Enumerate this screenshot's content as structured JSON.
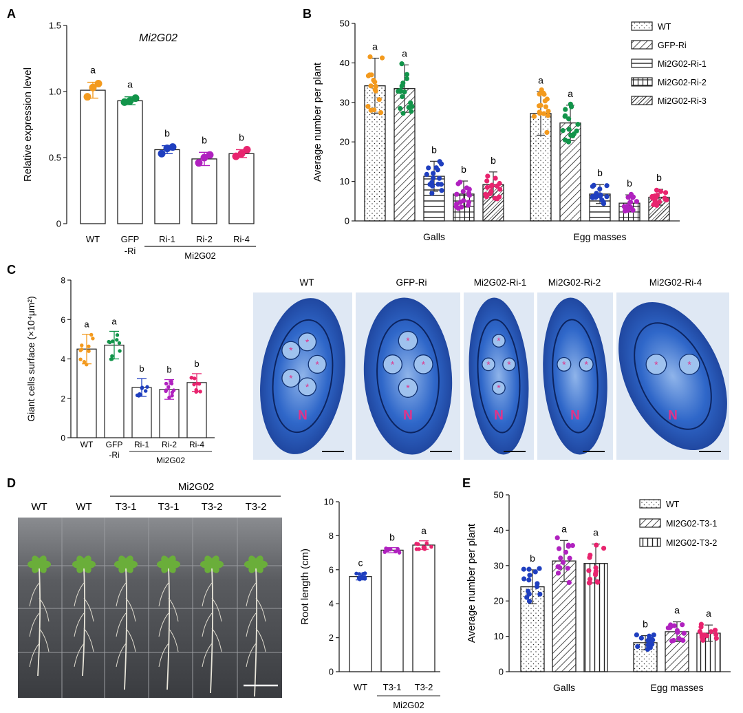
{
  "colors": {
    "WT": "#F39A1E",
    "GFP": "#12944A",
    "blue": "#1F3FBF",
    "purple": "#B021BF",
    "pink": "#E8246E",
    "stain": "#2A63C8",
    "plate": "#4a4c50"
  },
  "panels": {
    "A": {
      "letter": "A"
    },
    "B": {
      "letter": "B"
    },
    "C": {
      "letter": "C"
    },
    "D": {
      "letter": "D"
    },
    "E": {
      "letter": "E"
    }
  },
  "chart_data": [
    {
      "id": "A",
      "type": "bar",
      "title": "Mi2G02",
      "ylabel": "Relative expression level",
      "xlabel": "",
      "ylim": [
        0,
        1.5
      ],
      "yticks": [
        "0",
        "0.5",
        "1.0",
        "1.5"
      ],
      "yticks_values": [
        0,
        0.5,
        1.0,
        1.5
      ],
      "categories": [
        "WT",
        "GFP\n-Ri",
        "Ri-1",
        "Ri-2",
        "Ri-4"
      ],
      "group_label": "Mi2G02",
      "values": [
        1.01,
        0.93,
        0.56,
        0.49,
        0.53
      ],
      "errors": [
        0.06,
        0.03,
        0.03,
        0.05,
        0.03
      ],
      "letters": [
        "a",
        "a",
        "b",
        "b",
        "b"
      ],
      "points": [
        [
          0.96,
          1.03,
          1.06
        ],
        [
          0.92,
          0.93,
          0.95
        ],
        [
          0.53,
          0.57,
          0.58
        ],
        [
          0.46,
          0.5,
          0.52
        ],
        [
          0.51,
          0.53,
          0.56
        ]
      ],
      "colors": [
        "#F39A1E",
        "#12944A",
        "#1F3FBF",
        "#B021BF",
        "#E8246E"
      ]
    },
    {
      "id": "B",
      "type": "bar",
      "ylabel": "Average number per plant",
      "ylim": [
        0,
        50
      ],
      "yticks": [
        "0",
        "10",
        "20",
        "30",
        "40",
        "50"
      ],
      "yticks_values": [
        0,
        10,
        20,
        30,
        40,
        50
      ],
      "groups": [
        "Galls",
        "Egg masses"
      ],
      "legend": [
        "WT",
        "GFP-Ri",
        "Mi2G02-Ri-1",
        "Mi2G02-Ri-2",
        "Mi2G02-Ri-3"
      ],
      "legend_position": "top-right",
      "series": [
        {
          "name": "WT",
          "values": [
            34.2,
            27.2
          ],
          "errors": [
            7.0,
            5.5
          ],
          "letters": [
            "a",
            "a"
          ]
        },
        {
          "name": "GFP-Ri",
          "values": [
            33.5,
            24.8
          ],
          "errors": [
            6.0,
            4.5
          ],
          "letters": [
            "a",
            "a"
          ]
        },
        {
          "name": "Mi2G02-Ri-1",
          "values": [
            11.3,
            6.8
          ],
          "errors": [
            3.8,
            2.4
          ],
          "letters": [
            "b",
            "b"
          ]
        },
        {
          "name": "Mi2G02-Ri-2",
          "values": [
            6.8,
            4.5
          ],
          "errors": [
            3.3,
            2.1
          ],
          "letters": [
            "b",
            "b"
          ]
        },
        {
          "name": "Mi2G02-Ri-3",
          "values": [
            9.2,
            6.0
          ],
          "errors": [
            3.2,
            2.0
          ],
          "letters": [
            "b",
            "b"
          ]
        }
      ]
    },
    {
      "id": "C",
      "type": "bar",
      "ylabel": "Giant cells surface (×10⁴μm²)",
      "ylim": [
        0,
        8
      ],
      "yticks": [
        "0",
        "2",
        "4",
        "6",
        "8"
      ],
      "yticks_values": [
        0,
        2,
        4,
        6,
        8
      ],
      "categories": [
        "WT",
        "GFP\n-Ri",
        "Ri-1",
        "Ri-2",
        "Ri-4"
      ],
      "group_label": "Mi2G02",
      "values": [
        4.5,
        4.7,
        2.55,
        2.45,
        2.8
      ],
      "errors": [
        0.75,
        0.7,
        0.45,
        0.5,
        0.45
      ],
      "letters": [
        "a",
        "a",
        "b",
        "b",
        "b"
      ],
      "colors": [
        "#F39A1E",
        "#12944A",
        "#1F3FBF",
        "#B021BF",
        "#E8246E"
      ]
    },
    {
      "id": "D-root",
      "type": "bar",
      "ylabel": "Root length (cm)",
      "ylim": [
        0,
        10
      ],
      "yticks": [
        "0",
        "2",
        "4",
        "6",
        "8",
        "10"
      ],
      "yticks_values": [
        0,
        2,
        4,
        6,
        8,
        10
      ],
      "categories": [
        "WT",
        "T3-1",
        "T3-2"
      ],
      "group_label": "Mi2G02",
      "values": [
        5.6,
        7.15,
        7.45
      ],
      "errors": [
        0.2,
        0.15,
        0.25
      ],
      "letters": [
        "c",
        "b",
        "a"
      ],
      "colors": [
        "#1F3FBF",
        "#B021BF",
        "#E8246E"
      ]
    },
    {
      "id": "E",
      "type": "bar",
      "ylabel": "Average number per plant",
      "ylim": [
        0,
        50
      ],
      "yticks": [
        "0",
        "10",
        "20",
        "30",
        "40",
        "50"
      ],
      "yticks_values": [
        0,
        10,
        20,
        30,
        40,
        50
      ],
      "groups": [
        "Galls",
        "Egg masses"
      ],
      "legend": [
        "WT",
        "MI2G02-T3-1",
        "MI2G02-T3-2"
      ],
      "legend_position": "top-right",
      "series": [
        {
          "name": "WT",
          "values": [
            24.0,
            8.2
          ],
          "errors": [
            4.8,
            2.0
          ],
          "letters": [
            "b",
            "b"
          ]
        },
        {
          "name": "MI2G02-T3-1",
          "values": [
            31.3,
            11.3
          ],
          "errors": [
            5.8,
            2.8
          ],
          "letters": [
            "a",
            "a"
          ]
        },
        {
          "name": "MI2G02-T3-2",
          "values": [
            30.6,
            10.9
          ],
          "errors": [
            5.5,
            2.3
          ],
          "letters": [
            "a",
            "a"
          ]
        }
      ]
    }
  ],
  "micrographs": [
    {
      "label": "WT"
    },
    {
      "label": "GFP-Ri"
    },
    {
      "label": "Mi2G02-Ri-1"
    },
    {
      "label": "Mi2G02-Ri-2"
    },
    {
      "label": "Mi2G02-Ri-4"
    }
  ],
  "micro_marks": {
    "nucleus": "N",
    "giant_cell": "*"
  },
  "plate": {
    "group_label": "Mi2G02",
    "labels": [
      "WT",
      "WT",
      "T3-1",
      "T3-1",
      "T3-2",
      "T3-2"
    ]
  }
}
